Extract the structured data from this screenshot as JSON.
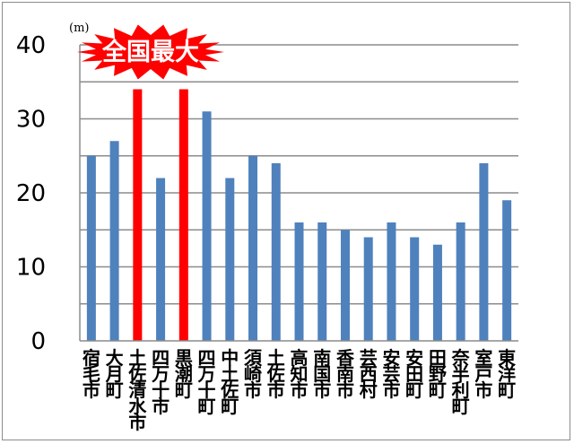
{
  "chart_data": {
    "type": "bar",
    "unit": "(m)",
    "badge": "全国最大",
    "categories": [
      "宿毛市",
      "大月町",
      "土佐清水市",
      "四万十市",
      "黒潮町",
      "四万十町",
      "中土佐町",
      "須崎市",
      "土佐市",
      "高知市",
      "南国市",
      "香南市",
      "芸西村",
      "安芸市",
      "安田町",
      "田野町",
      "奈半利町",
      "室戸市",
      "東洋町"
    ],
    "values": [
      25,
      27,
      34,
      22,
      34,
      31,
      22,
      25,
      24,
      16,
      16,
      15,
      14,
      16,
      14,
      13,
      16,
      24,
      19
    ],
    "highlight": [
      false,
      false,
      true,
      false,
      true,
      false,
      false,
      false,
      false,
      false,
      false,
      false,
      false,
      false,
      false,
      false,
      false,
      false,
      false
    ],
    "yticks": [
      "0",
      "10",
      "20",
      "30",
      "40"
    ],
    "ylim": [
      0,
      40
    ],
    "grid": true,
    "colors": {
      "bar": "#4f81bd",
      "highlight": "#ff0000",
      "badge": "#ff0000",
      "grid": "#8c8c8c",
      "axis": "#8c8c8c"
    }
  }
}
